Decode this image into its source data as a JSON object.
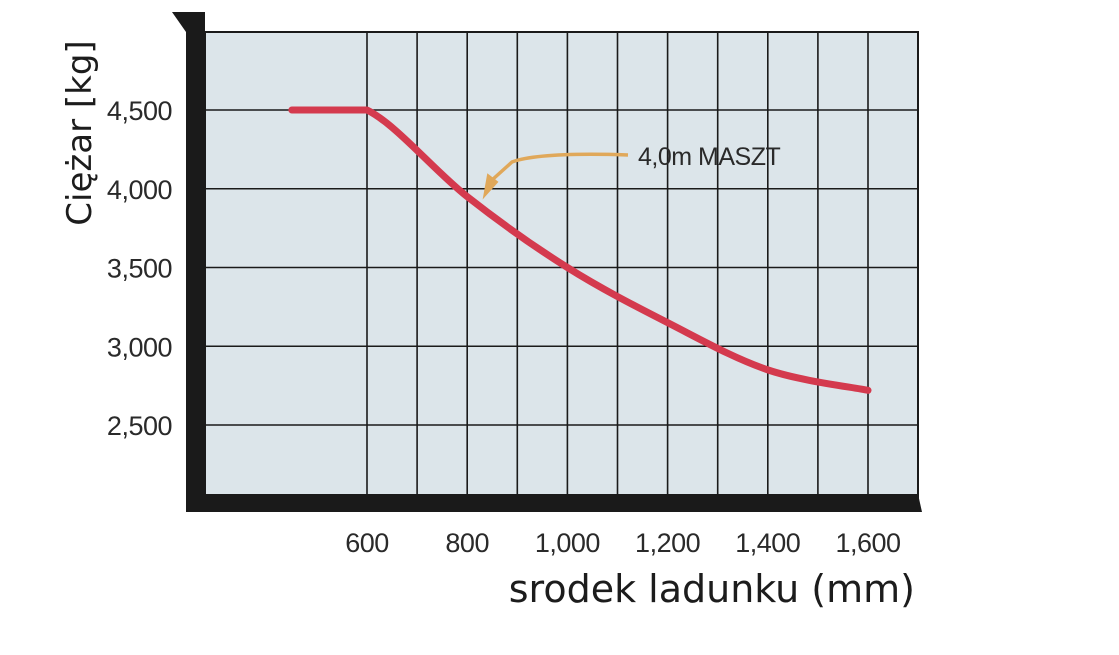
{
  "chart_data": {
    "type": "line",
    "title": "",
    "xlabel": "srodek ladunku (mm)",
    "ylabel": "Ciężar [kg]",
    "xlim": [
      450,
      1600
    ],
    "ylim": [
      2000,
      5000
    ],
    "x_ticks": [
      600,
      800,
      1000,
      1200,
      1400,
      1600
    ],
    "x_tick_labels": [
      "600",
      "800",
      "1,000",
      "1,200",
      "1,400",
      "1,600"
    ],
    "y_ticks": [
      2500,
      3000,
      3500,
      4000,
      4500
    ],
    "y_tick_labels": [
      "2,500",
      "3,000",
      "3,500",
      "4,000",
      "4,500"
    ],
    "grid": true,
    "background_color": "#dce5ea",
    "line_color": "#d43a4e",
    "series": [
      {
        "name": "4,0m MASZT",
        "x": [
          450,
          600,
          800,
          1000,
          1200,
          1400,
          1600
        ],
        "y": [
          4500,
          4500,
          3950,
          3500,
          3150,
          2850,
          2720
        ]
      }
    ],
    "annotations": [
      {
        "text": "4,0m MASZT",
        "target_x": 830,
        "target_y": 3940
      }
    ]
  }
}
